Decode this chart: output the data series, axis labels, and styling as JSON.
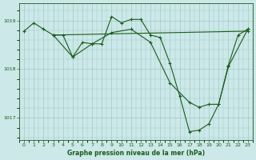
{
  "title": "Graphe pression niveau de la mer (hPa)",
  "bg_color": "#cce8e8",
  "grid_color": "#a0c8c8",
  "line_color": "#1a5c1a",
  "xlim": [
    -0.5,
    23.5
  ],
  "ylim": [
    1016.55,
    1019.35
  ],
  "yticks": [
    1017,
    1018,
    1019
  ],
  "xticks": [
    0,
    1,
    2,
    3,
    4,
    5,
    6,
    7,
    8,
    9,
    10,
    11,
    12,
    13,
    14,
    15,
    16,
    17,
    18,
    19,
    20,
    21,
    22,
    23
  ],
  "series1": [
    [
      0,
      1018.78
    ],
    [
      1,
      1018.95
    ],
    [
      2,
      1018.82
    ],
    [
      3,
      1018.7
    ],
    [
      4,
      1018.7
    ],
    [
      5,
      1018.25
    ],
    [
      6,
      1018.55
    ],
    [
      7,
      1018.52
    ],
    [
      8,
      1018.52
    ],
    [
      9,
      1019.08
    ],
    [
      10,
      1018.95
    ],
    [
      11,
      1019.02
    ],
    [
      12,
      1019.02
    ],
    [
      13,
      1018.7
    ],
    [
      14,
      1018.65
    ],
    [
      15,
      1018.12
    ],
    [
      16,
      1017.45
    ],
    [
      17,
      1016.72
    ],
    [
      18,
      1016.75
    ],
    [
      19,
      1016.88
    ],
    [
      20,
      1017.28
    ],
    [
      21,
      1018.08
    ],
    [
      22,
      1018.7
    ],
    [
      23,
      1018.82
    ]
  ],
  "series2": [
    [
      3,
      1018.7
    ],
    [
      23,
      1018.78
    ]
  ],
  "series3": [
    [
      3,
      1018.7
    ],
    [
      5,
      1018.25
    ],
    [
      7,
      1018.52
    ],
    [
      9,
      1018.75
    ],
    [
      11,
      1018.82
    ],
    [
      13,
      1018.55
    ],
    [
      15,
      1017.72
    ],
    [
      17,
      1017.32
    ],
    [
      18,
      1017.22
    ],
    [
      19,
      1017.28
    ],
    [
      20,
      1017.28
    ],
    [
      21,
      1018.05
    ],
    [
      23,
      1018.82
    ]
  ]
}
